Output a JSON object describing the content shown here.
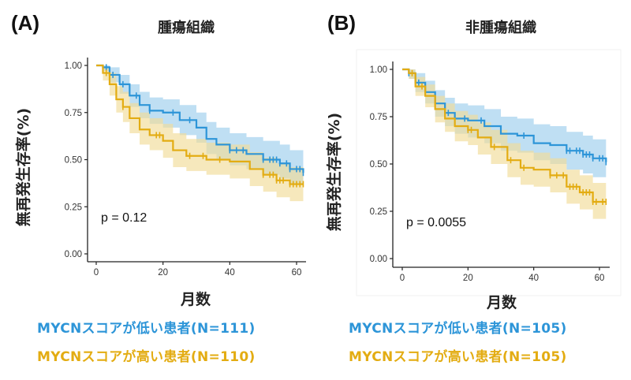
{
  "colors": {
    "low": "#2d95d8",
    "low_band": "#a9d4ef",
    "high": "#e3ac12",
    "high_band": "#f1dc98",
    "axis": "#222222",
    "frame": "#f2f2f2"
  },
  "chart_data": [
    {
      "type": "line",
      "panel_label": "(A)",
      "title": "腫瘍組織",
      "xlabel": "月数",
      "ylabel": "無再発生存率(%)",
      "xlim": [
        0,
        62
      ],
      "ylim": [
        0,
        1
      ],
      "xticks": [
        "0",
        "20",
        "40",
        "60"
      ],
      "xtick_values": [
        0,
        20,
        40,
        60
      ],
      "yticks": [
        "0.00",
        "0.25",
        "0.50",
        "0.75",
        "1.00"
      ],
      "ytick_values": [
        0,
        0.25,
        0.5,
        0.75,
        1.0
      ],
      "annotation": "p = 0.12",
      "grid": false,
      "legend_placement": "below",
      "series": [
        {
          "name": "MYCNスコアが低い患者(N=111)",
          "key": "low",
          "x": [
            0,
            2,
            4,
            7,
            10,
            13,
            16,
            20,
            25,
            30,
            33,
            36,
            40,
            45,
            50,
            55,
            58,
            62
          ],
          "y": [
            1.0,
            0.99,
            0.95,
            0.9,
            0.84,
            0.79,
            0.76,
            0.75,
            0.71,
            0.67,
            0.61,
            0.58,
            0.55,
            0.53,
            0.5,
            0.48,
            0.45,
            0.43
          ],
          "ci_lower": [
            1.0,
            0.97,
            0.91,
            0.85,
            0.78,
            0.72,
            0.69,
            0.67,
            0.63,
            0.59,
            0.53,
            0.5,
            0.47,
            0.45,
            0.42,
            0.4,
            0.37,
            0.35
          ],
          "ci_upper": [
            1.0,
            1.0,
            0.99,
            0.95,
            0.9,
            0.86,
            0.83,
            0.82,
            0.79,
            0.75,
            0.7,
            0.67,
            0.64,
            0.62,
            0.6,
            0.58,
            0.55,
            0.53
          ],
          "censor_x": [
            3,
            5,
            8,
            12,
            16,
            23,
            28,
            40,
            42,
            44,
            50,
            52,
            53,
            54,
            55,
            57,
            58,
            60,
            61,
            62
          ]
        },
        {
          "name": "MYCNスコアが高い患者(N=110)",
          "key": "high",
          "x": [
            0,
            2,
            4,
            6,
            8,
            10,
            13,
            16,
            20,
            23,
            27,
            33,
            40,
            46,
            50,
            54,
            58,
            62
          ],
          "y": [
            1.0,
            0.96,
            0.9,
            0.82,
            0.78,
            0.72,
            0.66,
            0.63,
            0.6,
            0.55,
            0.52,
            0.5,
            0.49,
            0.45,
            0.42,
            0.39,
            0.37,
            0.37
          ],
          "ci_lower": [
            1.0,
            0.92,
            0.84,
            0.75,
            0.7,
            0.64,
            0.58,
            0.55,
            0.51,
            0.46,
            0.44,
            0.42,
            0.4,
            0.36,
            0.33,
            0.3,
            0.28,
            0.28
          ],
          "ci_upper": [
            1.0,
            0.99,
            0.96,
            0.89,
            0.86,
            0.8,
            0.75,
            0.72,
            0.69,
            0.64,
            0.61,
            0.59,
            0.58,
            0.54,
            0.51,
            0.48,
            0.46,
            0.46
          ],
          "censor_x": [
            3,
            8,
            18,
            19,
            28,
            32,
            37,
            50,
            52,
            53,
            54,
            55,
            56,
            58,
            59,
            60,
            61,
            62
          ]
        }
      ]
    },
    {
      "type": "line",
      "panel_label": "(B)",
      "title": "非腫瘍組織",
      "xlabel": "月数",
      "ylabel": "無再発生存率(%)",
      "xlim": [
        0,
        62
      ],
      "ylim": [
        0,
        1
      ],
      "xticks": [
        "0",
        "20",
        "40",
        "60"
      ],
      "xtick_values": [
        0,
        20,
        40,
        60
      ],
      "yticks": [
        "0.00",
        "0.25",
        "0.50",
        "0.75",
        "1.00"
      ],
      "ytick_values": [
        0,
        0.25,
        0.5,
        0.75,
        1.0
      ],
      "annotation": "p = 0.0055",
      "grid": false,
      "legend_placement": "below",
      "series": [
        {
          "name": "MYCNスコアが低い患者(N=105)",
          "key": "low",
          "x": [
            0,
            2,
            4,
            7,
            10,
            13,
            16,
            20,
            25,
            30,
            35,
            40,
            45,
            50,
            55,
            58,
            62
          ],
          "y": [
            1.0,
            0.98,
            0.93,
            0.88,
            0.82,
            0.77,
            0.74,
            0.73,
            0.7,
            0.66,
            0.65,
            0.61,
            0.6,
            0.57,
            0.55,
            0.53,
            0.51
          ],
          "ci_lower": [
            1.0,
            0.95,
            0.88,
            0.82,
            0.75,
            0.7,
            0.66,
            0.64,
            0.61,
            0.57,
            0.56,
            0.52,
            0.5,
            0.47,
            0.45,
            0.43,
            0.41
          ],
          "ci_upper": [
            1.0,
            1.0,
            0.98,
            0.94,
            0.89,
            0.85,
            0.82,
            0.81,
            0.79,
            0.75,
            0.74,
            0.71,
            0.7,
            0.67,
            0.65,
            0.63,
            0.63
          ],
          "censor_x": [
            2,
            5,
            7,
            10,
            14,
            19,
            24,
            37,
            50,
            51,
            53,
            54,
            55,
            56,
            57,
            58,
            60,
            61,
            62
          ]
        },
        {
          "name": "MYCNスコアが高い患者(N=105)",
          "key": "high",
          "x": [
            0,
            2,
            4,
            7,
            10,
            13,
            16,
            20,
            23,
            27,
            32,
            36,
            40,
            45,
            50,
            54,
            58,
            62
          ],
          "y": [
            1.0,
            0.98,
            0.91,
            0.86,
            0.79,
            0.74,
            0.7,
            0.68,
            0.64,
            0.59,
            0.52,
            0.48,
            0.47,
            0.44,
            0.38,
            0.35,
            0.3,
            0.3
          ],
          "ci_lower": [
            1.0,
            0.95,
            0.86,
            0.8,
            0.72,
            0.67,
            0.62,
            0.6,
            0.55,
            0.5,
            0.43,
            0.39,
            0.38,
            0.35,
            0.29,
            0.26,
            0.21,
            0.21
          ],
          "ci_upper": [
            1.0,
            1.0,
            0.96,
            0.92,
            0.86,
            0.82,
            0.78,
            0.76,
            0.72,
            0.68,
            0.61,
            0.57,
            0.56,
            0.53,
            0.47,
            0.44,
            0.4,
            0.4
          ],
          "censor_x": [
            3,
            6,
            20,
            21,
            28,
            33,
            37,
            45,
            47,
            49,
            51,
            52,
            53,
            55,
            56,
            57,
            58,
            59,
            61,
            62
          ]
        }
      ]
    }
  ]
}
